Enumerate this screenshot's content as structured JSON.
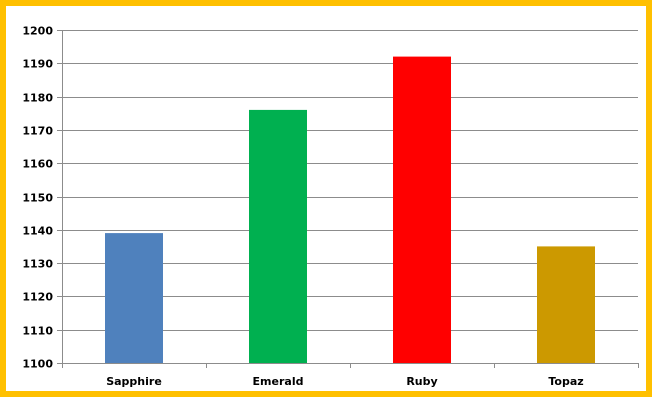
{
  "chart_data": {
    "type": "bar",
    "title": "",
    "xlabel": "",
    "ylabel": "",
    "categories": [
      "Sapphire",
      "Emerald",
      "Ruby",
      "Topaz"
    ],
    "values": [
      1139,
      1176,
      1192,
      1135
    ],
    "colors": [
      "#4F81BD",
      "#00B050",
      "#FF0000",
      "#CC9900"
    ],
    "ylim": [
      1100,
      1200
    ],
    "yticks": [
      1100,
      1110,
      1120,
      1130,
      1140,
      1150,
      1160,
      1170,
      1180,
      1190,
      1200
    ],
    "ytick_labels": [
      "1100",
      "1110",
      "1120",
      "1130",
      "1140",
      "1150",
      "1160",
      "1170",
      "1180",
      "1190",
      "1200"
    ],
    "grid": true,
    "legend": "none"
  },
  "style": {
    "frame_color": "#FFC000",
    "grid_color": "#8C8C8C",
    "axis_color": "#8C8C8C"
  }
}
